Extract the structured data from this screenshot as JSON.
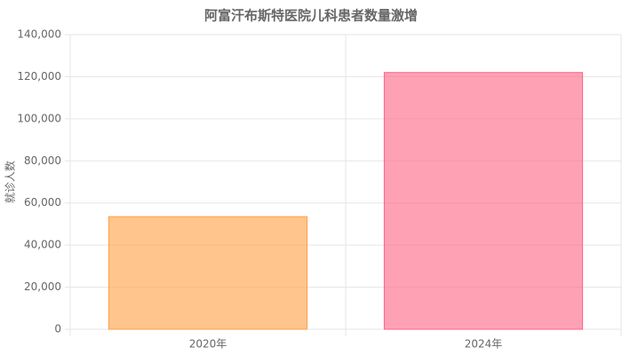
{
  "chart_data": {
    "type": "bar",
    "title": "阿富汗布斯特医院儿科患者数量激增",
    "y_label": "就诊人数",
    "categories": [
      "2020年",
      "2024年"
    ],
    "values": [
      53500,
      122000
    ],
    "colors": [
      "rgba(255,159,64,0.6)",
      "rgba(255,99,132,0.6)"
    ],
    "border_colors": [
      "rgb(255,159,64)",
      "rgb(255,99,132)"
    ],
    "ylim": [
      0,
      140000
    ],
    "yticks": [
      0,
      {
        "value": 20000,
        "label": "20,000"
      },
      {
        "value": 40000,
        "label": "40,000"
      },
      {
        "value": 60000,
        "label": "60,000"
      },
      {
        "value": 80000,
        "label": "80,000"
      },
      {
        "value": 100000,
        "label": "100,000"
      },
      {
        "value": 120000,
        "label": "120,000"
      },
      {
        "value": 140000,
        "label": "140,000"
      }
    ],
    "grid": true
  }
}
